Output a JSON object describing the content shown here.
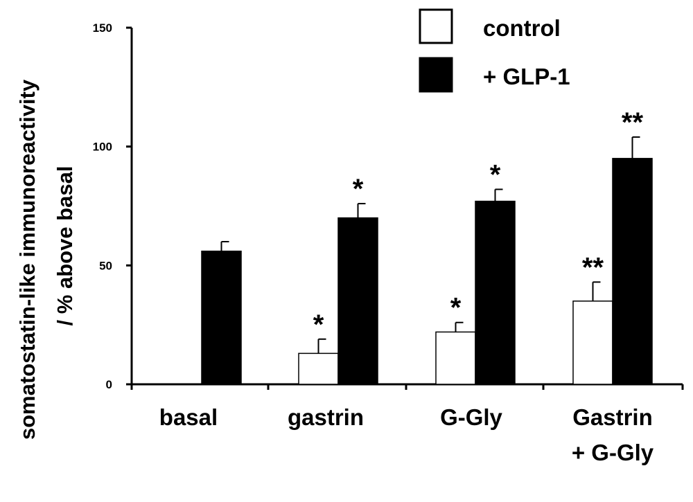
{
  "chart_data": {
    "type": "bar",
    "ylabel_line1": "somatostatin-like immunoreactivity",
    "ylabel_line2": "/ % above basal",
    "ylim": [
      0,
      150
    ],
    "yticks": [
      0,
      50,
      100,
      150
    ],
    "grid": false,
    "legend_position": "top-right",
    "categories": [
      {
        "lines": [
          "basal"
        ]
      },
      {
        "lines": [
          "gastrin"
        ]
      },
      {
        "lines": [
          "G-Gly"
        ]
      },
      {
        "lines": [
          "Gastrin",
          "+ G-Gly"
        ]
      }
    ],
    "series": [
      {
        "name": "control",
        "fill": "#ffffff",
        "values": [
          0,
          13,
          22,
          35
        ],
        "errors": [
          0,
          6,
          4,
          8
        ],
        "significance": [
          "",
          "*",
          "*",
          "**"
        ]
      },
      {
        "name": "+ GLP-1",
        "fill": "#000000",
        "values": [
          56,
          70,
          77,
          95
        ],
        "errors": [
          4,
          6,
          5,
          9
        ],
        "significance": [
          "",
          "*",
          "*",
          "**"
        ]
      }
    ]
  }
}
